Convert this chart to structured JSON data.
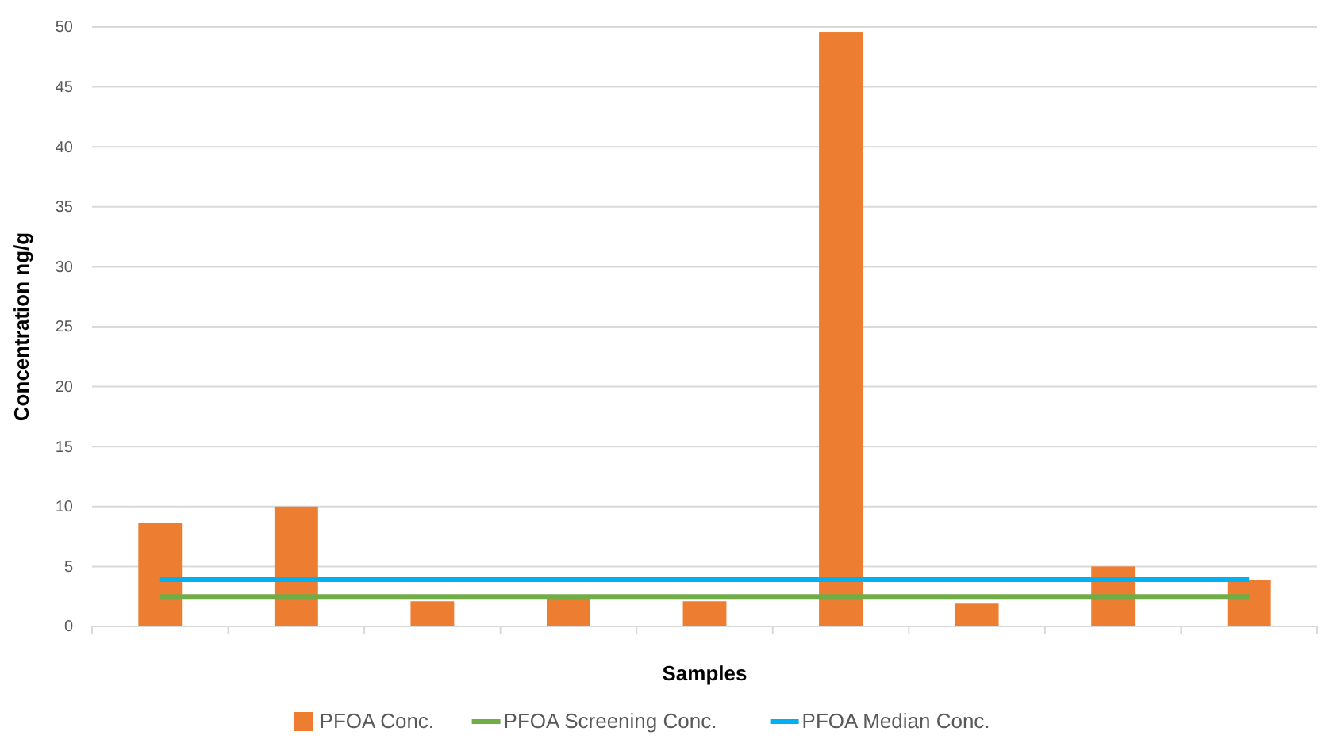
{
  "chart_data": {
    "type": "bar",
    "xlabel": "Samples",
    "ylabel": "Concentration ng/g",
    "categories": [
      null,
      null,
      null,
      null,
      null,
      null,
      null,
      null,
      null
    ],
    "series": [
      {
        "name": "PFOA Conc.",
        "color": "#ed7d31",
        "values": [
          8.6,
          10.0,
          2.1,
          2.5,
          2.1,
          49.6,
          1.9,
          5.0,
          3.9
        ]
      },
      {
        "name": "PFOA Screening Conc.",
        "type": "line",
        "color": "#70ad47",
        "values": [
          2.5,
          2.5,
          2.5,
          2.5,
          2.5,
          2.5,
          2.5,
          2.5,
          2.5
        ]
      },
      {
        "name": "PFOA Median Conc.",
        "type": "line",
        "color": "#00b0f0",
        "values": [
          3.9,
          3.9,
          3.9,
          3.9,
          3.9,
          3.9,
          3.9,
          3.9,
          3.9
        ]
      }
    ],
    "ylim": [
      0,
      50
    ],
    "yticks": [
      0,
      5,
      10,
      15,
      20,
      25,
      30,
      35,
      40,
      45,
      50
    ],
    "grid": "y",
    "legend": "bottom",
    "marker": "none"
  }
}
